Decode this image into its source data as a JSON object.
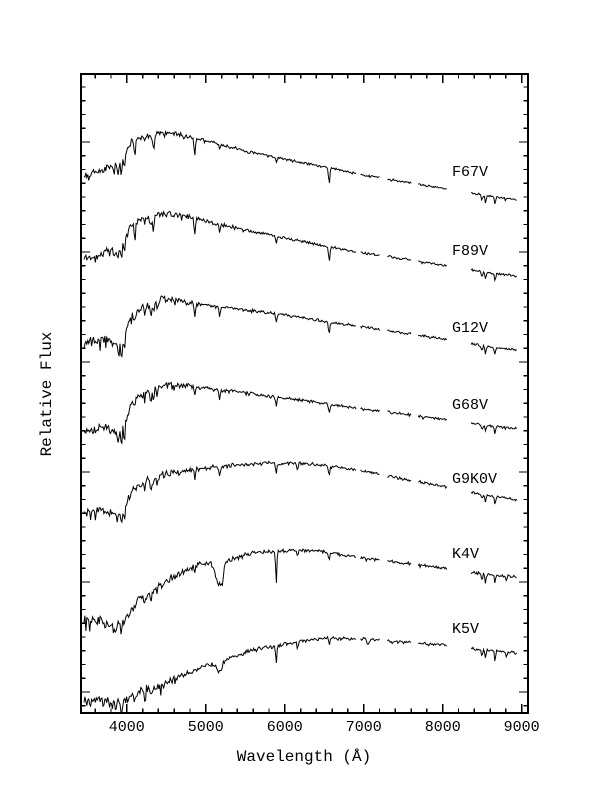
{
  "page": {
    "background": "#ffffff",
    "ink": "#000000"
  },
  "chart_data": {
    "type": "line",
    "title": "",
    "xlabel": "Wavelength (Å)",
    "ylabel": "Relative Flux",
    "xlim": [
      3420,
      9080
    ],
    "x_major_ticks": [
      4000,
      5000,
      6000,
      7000,
      8000,
      9000
    ],
    "x_major_tick_labels": [
      "4000",
      "5000",
      "6000",
      "7000",
      "8000",
      "9000"
    ],
    "x_minor_step": 200,
    "y_axis_labeled": false,
    "y_units": "arbitrary relative flux (unlabeled axis); trace coordinates given in page pixels",
    "grid": false,
    "legend": "labels drawn beside each trace",
    "sample_step_angstrom": 12,
    "segments": [
      [
        3458,
        6910
      ],
      [
        6960,
        7200
      ],
      [
        7300,
        7600
      ],
      [
        7690,
        8060
      ],
      [
        8360,
        8945
      ]
    ],
    "series": [
      {
        "label": "F67V",
        "label_pos": [
          452,
          176
        ],
        "seed": 101,
        "spike_p": 0.09,
        "continuum_anchors": [
          [
            3460,
            177
          ],
          [
            3700,
            170
          ],
          [
            3900,
            162
          ],
          [
            3975,
            153
          ],
          [
            4060,
            140
          ],
          [
            4200,
            137
          ],
          [
            4400,
            134
          ],
          [
            4600,
            133
          ],
          [
            4800,
            137
          ],
          [
            5100,
            143
          ],
          [
            5500,
            151
          ],
          [
            6000,
            159
          ],
          [
            6500,
            167
          ],
          [
            7000,
            175
          ],
          [
            7500,
            182
          ],
          [
            8000,
            188
          ],
          [
            8500,
            195
          ],
          [
            8950,
            200
          ]
        ],
        "noise_anchors": [
          [
            3460,
            3.0
          ],
          [
            4200,
            2.2
          ],
          [
            5000,
            1.3
          ],
          [
            6500,
            0.9
          ],
          [
            8950,
            0.8
          ]
        ],
        "absorption_lines": [
          [
            3835,
            9,
            9
          ],
          [
            3889,
            11,
            9
          ],
          [
            3933,
            15,
            9
          ],
          [
            3970,
            13,
            9
          ],
          [
            4101,
            17,
            9
          ],
          [
            4226,
            6,
            6
          ],
          [
            4340,
            17,
            9
          ],
          [
            4861,
            19,
            9
          ],
          [
            5175,
            5,
            9
          ],
          [
            5893,
            6,
            8
          ],
          [
            6563,
            15,
            9
          ],
          [
            8498,
            5,
            8
          ],
          [
            8542,
            7,
            8
          ],
          [
            8662,
            7,
            8
          ]
        ]
      },
      {
        "label": "F89V",
        "label_pos": [
          452,
          255
        ],
        "seed": 202,
        "spike_p": 0.1,
        "continuum_anchors": [
          [
            3460,
            259
          ],
          [
            3700,
            253
          ],
          [
            3900,
            246
          ],
          [
            3975,
            238
          ],
          [
            4060,
            223
          ],
          [
            4200,
            219
          ],
          [
            4400,
            215
          ],
          [
            4600,
            213
          ],
          [
            4800,
            217
          ],
          [
            5100,
            223
          ],
          [
            5500,
            230
          ],
          [
            6000,
            238
          ],
          [
            6500,
            246
          ],
          [
            7000,
            253
          ],
          [
            7500,
            259
          ],
          [
            8000,
            265
          ],
          [
            8500,
            272
          ],
          [
            8950,
            276
          ]
        ],
        "noise_anchors": [
          [
            3460,
            3.0
          ],
          [
            4200,
            2.4
          ],
          [
            5000,
            1.3
          ],
          [
            6500,
            0.9
          ],
          [
            8950,
            0.8
          ]
        ],
        "absorption_lines": [
          [
            3835,
            9,
            9
          ],
          [
            3889,
            11,
            9
          ],
          [
            3933,
            17,
            9
          ],
          [
            3970,
            14,
            9
          ],
          [
            4101,
            14,
            9
          ],
          [
            4226,
            7,
            6
          ],
          [
            4305,
            8,
            11
          ],
          [
            4340,
            14,
            9
          ],
          [
            4861,
            16,
            9
          ],
          [
            5175,
            7,
            9
          ],
          [
            5893,
            7,
            8
          ],
          [
            6563,
            13,
            9
          ],
          [
            8498,
            5,
            8
          ],
          [
            8542,
            7,
            8
          ],
          [
            8662,
            7,
            8
          ]
        ]
      },
      {
        "label": "G12V",
        "label_pos": [
          452,
          332
        ],
        "seed": 303,
        "spike_p": 0.1,
        "continuum_anchors": [
          [
            3460,
            344
          ],
          [
            3700,
            339
          ],
          [
            3900,
            344
          ],
          [
            3975,
            333
          ],
          [
            4060,
            314
          ],
          [
            4200,
            308
          ],
          [
            4450,
            299
          ],
          [
            4650,
            300
          ],
          [
            4900,
            304
          ],
          [
            5200,
            307
          ],
          [
            5600,
            311
          ],
          [
            6000,
            315
          ],
          [
            6563,
            322
          ],
          [
            7000,
            327
          ],
          [
            7500,
            333
          ],
          [
            8000,
            339
          ],
          [
            8500,
            346
          ],
          [
            8950,
            350
          ]
        ],
        "noise_anchors": [
          [
            3460,
            3.4
          ],
          [
            4200,
            2.6
          ],
          [
            5000,
            1.4
          ],
          [
            6500,
            1.0
          ],
          [
            8950,
            0.9
          ]
        ],
        "absorption_lines": [
          [
            3889,
            9,
            9
          ],
          [
            3933,
            18,
            9
          ],
          [
            3970,
            15,
            9
          ],
          [
            4101,
            10,
            9
          ],
          [
            4226,
            8,
            6
          ],
          [
            4305,
            12,
            11
          ],
          [
            4340,
            10,
            9
          ],
          [
            4383,
            7,
            6
          ],
          [
            4861,
            12,
            9
          ],
          [
            5175,
            9,
            9
          ],
          [
            5893,
            9,
            8
          ],
          [
            6563,
            11,
            9
          ],
          [
            8498,
            5,
            8
          ],
          [
            8542,
            7,
            8
          ],
          [
            8662,
            7,
            8
          ]
        ]
      },
      {
        "label": "G68V",
        "label_pos": [
          452,
          409
        ],
        "seed": 404,
        "spike_p": 0.1,
        "continuum_anchors": [
          [
            3460,
            431
          ],
          [
            3700,
            427
          ],
          [
            3900,
            432
          ],
          [
            3985,
            421
          ],
          [
            4070,
            400
          ],
          [
            4200,
            394
          ],
          [
            4450,
            385
          ],
          [
            4700,
            385
          ],
          [
            5000,
            388
          ],
          [
            5400,
            392
          ],
          [
            5800,
            396
          ],
          [
            6200,
            400
          ],
          [
            6563,
            404
          ],
          [
            7000,
            409
          ],
          [
            7500,
            414
          ],
          [
            8000,
            419
          ],
          [
            8500,
            425
          ],
          [
            8950,
            429
          ]
        ],
        "noise_anchors": [
          [
            3460,
            3.4
          ],
          [
            4200,
            2.8
          ],
          [
            5000,
            1.5
          ],
          [
            6500,
            1.0
          ],
          [
            8950,
            0.9
          ]
        ],
        "absorption_lines": [
          [
            3889,
            8,
            9
          ],
          [
            3933,
            17,
            9
          ],
          [
            3970,
            14,
            9
          ],
          [
            4101,
            8,
            9
          ],
          [
            4226,
            9,
            6
          ],
          [
            4305,
            13,
            11
          ],
          [
            4340,
            9,
            9
          ],
          [
            4383,
            8,
            6
          ],
          [
            4861,
            10,
            9
          ],
          [
            5175,
            10,
            9
          ],
          [
            5893,
            10,
            8
          ],
          [
            6563,
            10,
            9
          ],
          [
            8498,
            5,
            8
          ],
          [
            8542,
            7,
            8
          ],
          [
            8662,
            7,
            8
          ]
        ]
      },
      {
        "label": "G9K0V",
        "label_pos": [
          452,
          483
        ],
        "seed": 505,
        "spike_p": 0.11,
        "continuum_anchors": [
          [
            3460,
            512
          ],
          [
            3700,
            509
          ],
          [
            3900,
            514
          ],
          [
            3990,
            505
          ],
          [
            4100,
            488
          ],
          [
            4300,
            478
          ],
          [
            4500,
            474
          ],
          [
            4800,
            470
          ],
          [
            5100,
            467
          ],
          [
            5400,
            465
          ],
          [
            5800,
            463
          ],
          [
            6200,
            463
          ],
          [
            6563,
            466
          ],
          [
            7000,
            471
          ],
          [
            7500,
            479
          ],
          [
            8000,
            486
          ],
          [
            8500,
            494
          ],
          [
            8950,
            500
          ]
        ],
        "noise_anchors": [
          [
            3460,
            3.8
          ],
          [
            4200,
            3.0
          ],
          [
            5000,
            1.6
          ],
          [
            6500,
            1.1
          ],
          [
            8950,
            0.9
          ]
        ],
        "absorption_lines": [
          [
            3933,
            15,
            9
          ],
          [
            3970,
            13,
            9
          ],
          [
            4226,
            10,
            6
          ],
          [
            4305,
            13,
            11
          ],
          [
            4340,
            8,
            9
          ],
          [
            4383,
            9,
            6
          ],
          [
            4861,
            9,
            9
          ],
          [
            5175,
            11,
            9
          ],
          [
            5893,
            12,
            8
          ],
          [
            6162,
            6,
            8
          ],
          [
            6563,
            9,
            9
          ],
          [
            8498,
            6,
            8
          ],
          [
            8542,
            8,
            8
          ],
          [
            8662,
            8,
            8
          ]
        ]
      },
      {
        "label": "K4V",
        "label_pos": [
          452,
          558
        ],
        "seed": 606,
        "spike_p": 0.12,
        "continuum_anchors": [
          [
            3460,
            618
          ],
          [
            3650,
            621
          ],
          [
            3850,
            627
          ],
          [
            4000,
            616
          ],
          [
            4150,
            601
          ],
          [
            4300,
            592
          ],
          [
            4500,
            581
          ],
          [
            4700,
            572
          ],
          [
            4900,
            565
          ],
          [
            5080,
            562
          ],
          [
            5350,
            559
          ],
          [
            5600,
            553
          ],
          [
            5900,
            551
          ],
          [
            6200,
            550
          ],
          [
            6500,
            552
          ],
          [
            7000,
            558
          ],
          [
            7500,
            563
          ],
          [
            8000,
            568
          ],
          [
            8500,
            574
          ],
          [
            8950,
            577
          ]
        ],
        "noise_anchors": [
          [
            3460,
            4.5
          ],
          [
            4200,
            3.5
          ],
          [
            5000,
            1.8
          ],
          [
            6500,
            1.2
          ],
          [
            8950,
            1.0
          ]
        ],
        "absorption_lines": [
          [
            3933,
            10,
            9
          ],
          [
            3970,
            9,
            9
          ],
          [
            4226,
            10,
            7
          ],
          [
            4305,
            10,
            11
          ],
          [
            4383,
            8,
            7
          ],
          [
            4861,
            6,
            9
          ],
          [
            5170,
            24,
            42
          ],
          [
            5210,
            9,
            10
          ],
          [
            5893,
            30,
            8
          ],
          [
            6162,
            8,
            8
          ],
          [
            6563,
            8,
            8
          ],
          [
            8498,
            7,
            7
          ],
          [
            8542,
            9,
            7
          ],
          [
            8662,
            9,
            7
          ],
          [
            8806,
            5,
            7
          ]
        ]
      },
      {
        "label": "K5V",
        "label_pos": [
          452,
          633
        ],
        "seed": 707,
        "spike_p": 0.12,
        "continuum_anchors": [
          [
            3460,
            702
          ],
          [
            3650,
            700
          ],
          [
            3850,
            706
          ],
          [
            4000,
            700
          ],
          [
            4150,
            692
          ],
          [
            4400,
            686
          ],
          [
            4700,
            676
          ],
          [
            5000,
            666
          ],
          [
            5300,
            658
          ],
          [
            5600,
            650
          ],
          [
            5900,
            646
          ],
          [
            6300,
            640
          ],
          [
            6600,
            638
          ],
          [
            7000,
            639
          ],
          [
            7500,
            642
          ],
          [
            8000,
            645
          ],
          [
            8500,
            650
          ],
          [
            8950,
            653
          ]
        ],
        "noise_anchors": [
          [
            3460,
            4.0
          ],
          [
            4200,
            3.6
          ],
          [
            5000,
            2.0
          ],
          [
            6500,
            1.3
          ],
          [
            8950,
            1.0
          ]
        ],
        "absorption_lines": [
          [
            3933,
            8,
            9
          ],
          [
            4226,
            9,
            7
          ],
          [
            4305,
            8,
            11
          ],
          [
            5170,
            10,
            38
          ],
          [
            5893,
            16,
            8
          ],
          [
            6162,
            8,
            8
          ],
          [
            6563,
            6,
            8
          ],
          [
            7054,
            5,
            16
          ],
          [
            8498,
            7,
            7
          ],
          [
            8542,
            9,
            7
          ],
          [
            8662,
            9,
            7
          ],
          [
            8806,
            5,
            7
          ]
        ]
      }
    ]
  }
}
